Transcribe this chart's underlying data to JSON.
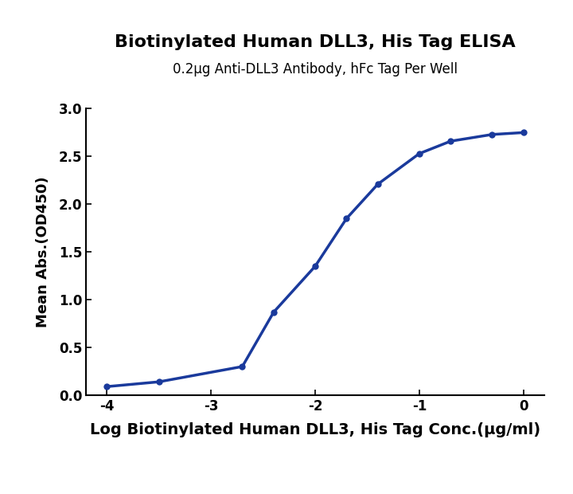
{
  "title": "Biotinylated Human DLL3, His Tag ELISA",
  "subtitle": "0.2μg Anti-DLL3 Antibody, hFc Tag Per Well",
  "xlabel": "Log Biotinylated Human DLL3, His Tag Conc.(μg/ml)",
  "ylabel": "Mean Abs.(OD450)",
  "x_data": [
    -4.0,
    -3.5,
    -2.699,
    -2.398,
    -2.0,
    -1.699,
    -1.398,
    -1.0,
    -0.699,
    -0.301,
    0.0
  ],
  "y_data": [
    0.09,
    0.14,
    0.3,
    0.87,
    1.35,
    1.85,
    2.21,
    2.53,
    2.66,
    2.73,
    2.75
  ],
  "xlim": [
    -4.2,
    0.2
  ],
  "ylim": [
    0.0,
    3.0
  ],
  "xticks": [
    -4,
    -3,
    -2,
    -1,
    0
  ],
  "yticks": [
    0.0,
    0.5,
    1.0,
    1.5,
    2.0,
    2.5,
    3.0
  ],
  "line_color": "#1a3a9c",
  "marker_color": "#1a3a9c",
  "marker_size": 6,
  "line_width": 2.5,
  "title_fontsize": 16,
  "subtitle_fontsize": 12,
  "xlabel_fontsize": 14,
  "ylabel_fontsize": 13,
  "tick_fontsize": 12,
  "background_color": "#ffffff"
}
